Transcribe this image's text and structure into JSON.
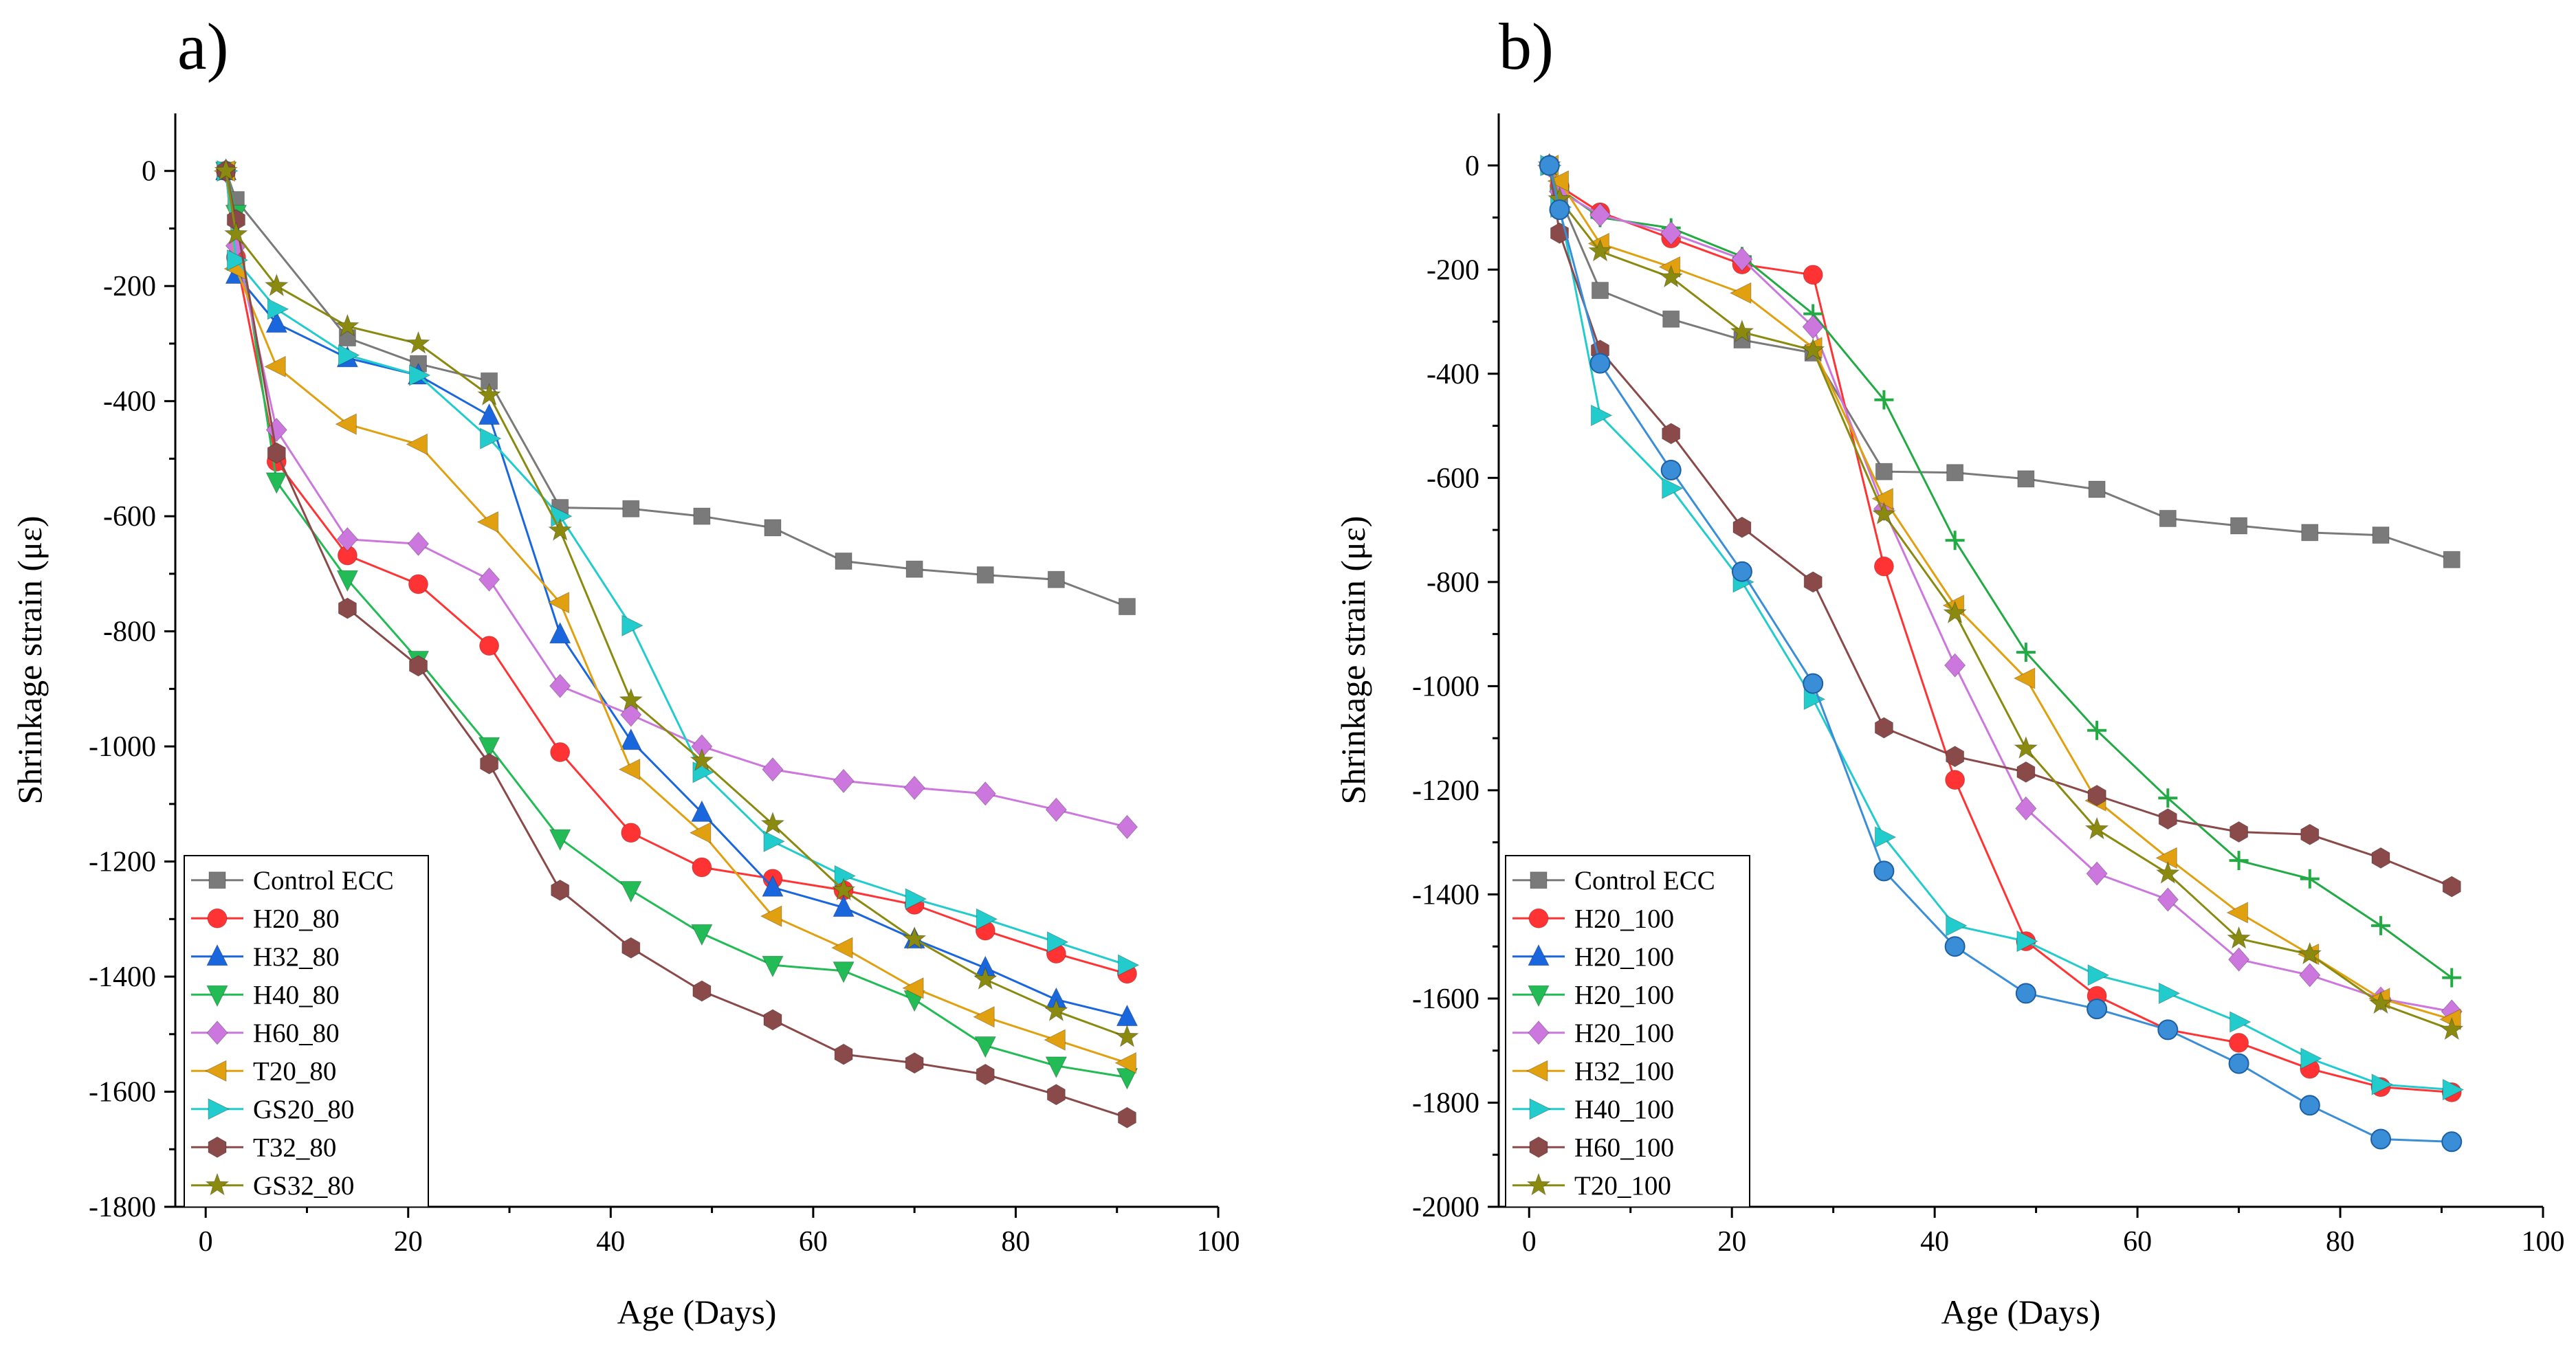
{
  "chart_data": [
    {
      "type": "line",
      "panel_label": "a)",
      "xlabel": "Age (Days)",
      "ylabel": "Shrinkage strain (με)",
      "xlim": [
        -3,
        100
      ],
      "ylim": [
        -1800,
        100
      ],
      "xticks": [
        0,
        20,
        40,
        60,
        80,
        100
      ],
      "yticks": [
        0,
        -200,
        -400,
        -600,
        -800,
        -1000,
        -1200,
        -1400,
        -1600,
        -1800
      ],
      "legend_position": "bottom-left",
      "series": [
        {
          "name": "Control ECC",
          "color": "#7a7a7a",
          "marker": "square",
          "x": [
            2,
            3,
            14,
            21,
            28,
            35,
            42,
            49,
            56,
            63,
            70,
            77,
            84,
            91
          ],
          "y": [
            0,
            -50,
            -290,
            -335,
            -365,
            -585,
            -587,
            -600,
            -620,
            -678,
            -692,
            -702,
            -710,
            -757
          ]
        },
        {
          "name": "H20_80",
          "color": "#ff3333",
          "marker": "circle",
          "x": [
            2,
            3,
            7,
            14,
            21,
            28,
            35,
            42,
            49,
            56,
            63,
            70,
            77,
            84,
            91
          ],
          "y": [
            0,
            -150,
            -505,
            -668,
            -718,
            -825,
            -1010,
            -1150,
            -1210,
            -1230,
            -1250,
            -1275,
            -1320,
            -1360,
            -1395
          ]
        },
        {
          "name": "H32_80",
          "color": "#1a66dd",
          "marker": "triangle-up",
          "x": [
            2,
            3,
            7,
            14,
            21,
            28,
            35,
            42,
            49,
            56,
            63,
            70,
            77,
            84,
            91
          ],
          "y": [
            0,
            -180,
            -265,
            -325,
            -355,
            -425,
            -805,
            -990,
            -1115,
            -1245,
            -1280,
            -1335,
            -1385,
            -1440,
            -1470
          ]
        },
        {
          "name": "H40_80",
          "color": "#22bb55",
          "marker": "triangle-down",
          "x": [
            2,
            3,
            7,
            14,
            21,
            28,
            35,
            42,
            49,
            56,
            63,
            70,
            77,
            84,
            91
          ],
          "y": [
            0,
            -75,
            -540,
            -710,
            -850,
            -1000,
            -1160,
            -1250,
            -1325,
            -1380,
            -1390,
            -1440,
            -1520,
            -1555,
            -1575
          ]
        },
        {
          "name": "H60_80",
          "color": "#cc77dd",
          "marker": "diamond",
          "x": [
            2,
            3,
            7,
            14,
            21,
            28,
            35,
            42,
            49,
            56,
            63,
            70,
            77,
            84,
            91
          ],
          "y": [
            0,
            -130,
            -450,
            -640,
            -648,
            -710,
            -895,
            -945,
            -1000,
            -1040,
            -1060,
            -1072,
            -1082,
            -1110,
            -1140
          ]
        },
        {
          "name": "T20_80",
          "color": "#e0a010",
          "marker": "triangle-left",
          "x": [
            2,
            3,
            7,
            14,
            21,
            28,
            35,
            42,
            49,
            56,
            63,
            70,
            77,
            84,
            91
          ],
          "y": [
            0,
            -170,
            -340,
            -440,
            -475,
            -610,
            -750,
            -1040,
            -1150,
            -1295,
            -1350,
            -1420,
            -1470,
            -1510,
            -1550
          ]
        },
        {
          "name": "GS20_80",
          "color": "#22cccc",
          "marker": "triangle-right",
          "x": [
            2,
            3,
            7,
            14,
            21,
            28,
            35,
            42,
            49,
            56,
            63,
            70,
            77,
            84,
            91
          ],
          "y": [
            0,
            -155,
            -240,
            -320,
            -355,
            -465,
            -600,
            -790,
            -1045,
            -1165,
            -1225,
            -1265,
            -1300,
            -1340,
            -1380
          ]
        },
        {
          "name": "T32_80",
          "color": "#8b4a4a",
          "marker": "hexagon",
          "x": [
            2,
            3,
            7,
            14,
            21,
            28,
            35,
            42,
            49,
            56,
            63,
            70,
            77,
            84,
            91
          ],
          "y": [
            0,
            -85,
            -490,
            -760,
            -860,
            -1030,
            -1250,
            -1350,
            -1425,
            -1475,
            -1535,
            -1550,
            -1570,
            -1605,
            -1645
          ]
        },
        {
          "name": "GS32_80",
          "color": "#8a8a10",
          "marker": "star",
          "x": [
            2,
            3,
            7,
            14,
            21,
            28,
            35,
            42,
            49,
            56,
            63,
            70,
            77,
            84,
            91
          ],
          "y": [
            0,
            -110,
            -200,
            -270,
            -300,
            -390,
            -625,
            -920,
            -1025,
            -1135,
            -1250,
            -1335,
            -1405,
            -1460,
            -1505
          ]
        }
      ]
    },
    {
      "type": "line",
      "panel_label": "b)",
      "xlabel": "Age (Days)",
      "ylabel": "Shrinkage strain (με)",
      "xlim": [
        -3,
        100
      ],
      "ylim": [
        -2000,
        100
      ],
      "xticks": [
        0,
        20,
        40,
        60,
        80,
        100
      ],
      "yticks": [
        0,
        -200,
        -400,
        -600,
        -800,
        -1000,
        -1200,
        -1400,
        -1600,
        -1800,
        -2000
      ],
      "legend_position": "bottom-left",
      "series": [
        {
          "name": "Control ECC",
          "color": "#7a7a7a",
          "marker": "square",
          "x": [
            2,
            3,
            7,
            14,
            21,
            28,
            35,
            42,
            49,
            56,
            63,
            70,
            77,
            84,
            91
          ],
          "y": [
            0,
            -60,
            -240,
            -295,
            -335,
            -360,
            -588,
            -590,
            -602,
            -622,
            -678,
            -692,
            -705,
            -710,
            -757
          ]
        },
        {
          "name": "H20_100",
          "color": "#ff3333",
          "marker": "circle",
          "x": [
            2,
            3,
            7,
            14,
            21,
            28,
            35,
            42,
            49,
            56,
            63,
            70,
            77,
            84,
            91
          ],
          "y": [
            0,
            -40,
            -90,
            -140,
            -190,
            -210,
            -770,
            -1180,
            -1490,
            -1595,
            -1660,
            -1685,
            -1735,
            -1770,
            -1780
          ]
        },
        {
          "name": "H20_100",
          "color": "#22aa44",
          "marker": "plus",
          "x": [
            2,
            3,
            7,
            14,
            21,
            28,
            35,
            42,
            49,
            56,
            63,
            70,
            77,
            84,
            91
          ],
          "y": [
            0,
            -45,
            -100,
            -120,
            -175,
            -285,
            -450,
            -720,
            -935,
            -1085,
            -1215,
            -1335,
            -1370,
            -1460,
            -1560
          ]
        },
        {
          "name": "H20_100",
          "color": "#cc77dd",
          "marker": "diamond",
          "x": [
            2,
            3,
            7,
            14,
            21,
            28,
            35,
            42,
            49,
            56,
            63,
            70,
            77,
            84,
            91
          ],
          "y": [
            0,
            -50,
            -95,
            -130,
            -180,
            -310,
            -660,
            -960,
            -1235,
            -1360,
            -1410,
            -1525,
            -1555,
            -1600,
            -1625
          ]
        },
        {
          "name": "H32_100",
          "color": "#e0a010",
          "marker": "triangle-left",
          "x": [
            2,
            3,
            7,
            14,
            21,
            28,
            35,
            42,
            49,
            56,
            63,
            70,
            77,
            84,
            91
          ],
          "y": [
            0,
            -30,
            -150,
            -195,
            -245,
            -350,
            -640,
            -845,
            -985,
            -1220,
            -1330,
            -1435,
            -1515,
            -1600,
            -1640
          ]
        },
        {
          "name": "H40_100",
          "color": "#22cccc",
          "marker": "triangle-right",
          "x": [
            2,
            3,
            7,
            14,
            21,
            28,
            35,
            42,
            49,
            56,
            63,
            70,
            77,
            84,
            91
          ],
          "y": [
            0,
            -80,
            -480,
            -620,
            -800,
            -1025,
            -1290,
            -1460,
            -1490,
            -1555,
            -1590,
            -1645,
            -1715,
            -1765,
            -1775
          ]
        },
        {
          "name": "H60_100",
          "color": "#8b4a4a",
          "marker": "hexagon",
          "x": [
            2,
            3,
            7,
            14,
            21,
            28,
            35,
            42,
            49,
            56,
            63,
            70,
            77,
            84,
            91
          ],
          "y": [
            0,
            -130,
            -355,
            -515,
            -695,
            -800,
            -1080,
            -1135,
            -1165,
            -1210,
            -1255,
            -1280,
            -1285,
            -1330,
            -1385
          ]
        },
        {
          "name": "T20_100",
          "color": "#8a8a10",
          "marker": "star",
          "x": [
            2,
            3,
            7,
            14,
            21,
            28,
            35,
            42,
            49,
            56,
            63,
            70,
            77,
            84,
            91
          ],
          "y": [
            0,
            -65,
            -165,
            -215,
            -320,
            -355,
            -670,
            -860,
            -1120,
            -1275,
            -1360,
            -1485,
            -1515,
            -1610,
            -1660
          ]
        },
        {
          "name": "",
          "color": "#3a8ed8",
          "marker": "sphere",
          "x": [
            2,
            3,
            7,
            14,
            21,
            28,
            35,
            42,
            49,
            56,
            63,
            70,
            77,
            84,
            91
          ],
          "y": [
            0,
            -85,
            -380,
            -585,
            -780,
            -995,
            -1355,
            -1500,
            -1590,
            -1620,
            -1660,
            -1725,
            -1805,
            -1870,
            -1875
          ]
        }
      ],
      "legend_entries": [
        {
          "name": "Control ECC",
          "color": "#7a7a7a",
          "marker": "square"
        },
        {
          "name": "H20_100",
          "color": "#ff3333",
          "marker": "circle"
        },
        {
          "name": "H20_100",
          "color": "#1a66dd",
          "marker": "triangle-up"
        },
        {
          "name": "H20_100",
          "color": "#22bb55",
          "marker": "triangle-down"
        },
        {
          "name": "H20_100",
          "color": "#cc77dd",
          "marker": "diamond"
        },
        {
          "name": "H32_100",
          "color": "#e0a010",
          "marker": "triangle-left"
        },
        {
          "name": "H40_100",
          "color": "#22cccc",
          "marker": "triangle-right"
        },
        {
          "name": "H60_100",
          "color": "#8b4a4a",
          "marker": "hexagon"
        },
        {
          "name": "T20_100",
          "color": "#8a8a10",
          "marker": "star"
        }
      ]
    }
  ]
}
